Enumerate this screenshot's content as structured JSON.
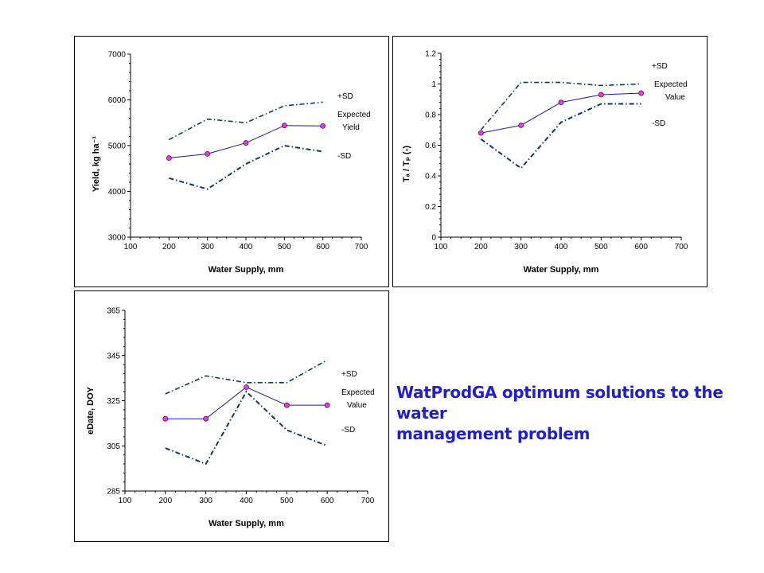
{
  "caption": {
    "line1": "WatProdGA optimum solutions to the water",
    "line2": "management problem"
  },
  "colors": {
    "mean_line": "#1a1a8c",
    "marker_fill": "#e040e0",
    "marker_stroke": "#6a006a",
    "sd_line": "#0d3a5c",
    "caption": "#1f1fcc"
  },
  "chart_data": [
    {
      "type": "line",
      "xlabel": "Water Supply, mm",
      "ylabel": "Yield, kg ha⁻¹",
      "xlim": [
        100,
        700
      ],
      "xticks": [
        100,
        200,
        300,
        400,
        500,
        600,
        700
      ],
      "ylim": [
        3000,
        7000
      ],
      "yticks": [
        3000,
        4000,
        5000,
        6000,
        7000
      ],
      "x": [
        200,
        300,
        400,
        500,
        600
      ],
      "series": [
        {
          "name": "+SD",
          "values": [
            5130,
            5580,
            5500,
            5870,
            5950
          ]
        },
        {
          "name": "Expected Yield",
          "values": [
            4730,
            4820,
            5060,
            5440,
            5430
          ]
        },
        {
          "name": "-SD",
          "values": [
            4290,
            4050,
            4600,
            5000,
            4870
          ]
        }
      ],
      "legend": [
        "+SD",
        "Expected",
        "Yield",
        "-SD"
      ]
    },
    {
      "type": "line",
      "xlabel": "Water Supply, mm",
      "ylabel": "Tₐ / Tₚ (-)",
      "xlim": [
        100,
        700
      ],
      "xticks": [
        100,
        200,
        300,
        400,
        500,
        600,
        700
      ],
      "ylim": [
        0,
        1.2
      ],
      "yticks": [
        "0",
        "0.2",
        "0.4",
        "0.6",
        "0.8",
        "1",
        "1.2"
      ],
      "x": [
        200,
        300,
        400,
        500,
        600
      ],
      "series": [
        {
          "name": "+SD",
          "values": [
            0.7,
            1.01,
            1.01,
            0.99,
            1.0
          ]
        },
        {
          "name": "Expected Value",
          "values": [
            0.68,
            0.73,
            0.88,
            0.93,
            0.94
          ]
        },
        {
          "name": "-SD",
          "values": [
            0.64,
            0.45,
            0.75,
            0.87,
            0.87
          ]
        }
      ],
      "legend": [
        "+SD",
        "Expected",
        "Value",
        "-SD"
      ]
    },
    {
      "type": "line",
      "xlabel": "Water Supply, mm",
      "ylabel": "eDate, DOY",
      "xlim": [
        100,
        700
      ],
      "xticks": [
        100,
        200,
        300,
        400,
        500,
        600,
        700
      ],
      "ylim": [
        285,
        365
      ],
      "yticks": [
        285,
        305,
        325,
        345,
        365
      ],
      "x": [
        200,
        300,
        400,
        500,
        600
      ],
      "series": [
        {
          "name": "+SD",
          "values": [
            328,
            336,
            333,
            333,
            343
          ]
        },
        {
          "name": "Expected Value",
          "values": [
            317,
            317,
            331,
            323,
            323
          ]
        },
        {
          "name": "-SD",
          "values": [
            304,
            297,
            329,
            312,
            305
          ]
        }
      ],
      "legend": [
        "+SD",
        "Expected",
        "Value",
        "-SD"
      ]
    }
  ]
}
